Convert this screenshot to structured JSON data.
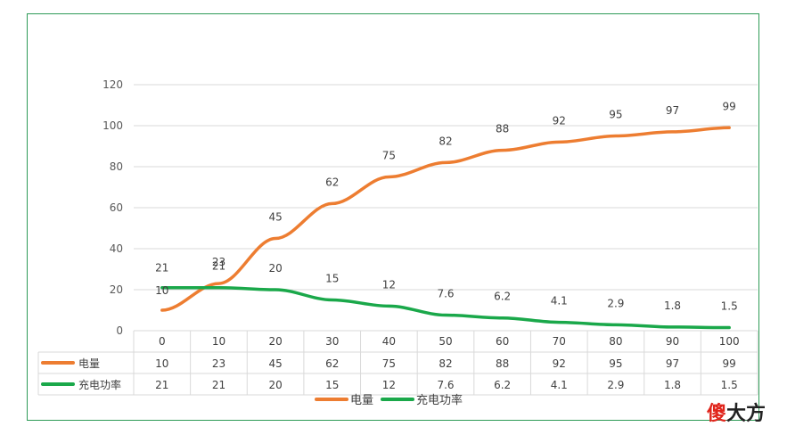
{
  "chart_data": {
    "type": "line",
    "categories": [
      "0",
      "10",
      "20",
      "30",
      "40",
      "50",
      "60",
      "70",
      "80",
      "90",
      "100"
    ],
    "series": [
      {
        "name": "电量",
        "color": "#ed7d31",
        "values": [
          10,
          23,
          45,
          62,
          75,
          82,
          88,
          92,
          95,
          97,
          99
        ],
        "labels": [
          "10",
          "23",
          "45",
          "62",
          "75",
          "82",
          "88",
          "92",
          "95",
          "97",
          "99"
        ]
      },
      {
        "name": "充电功率",
        "color": "#1aa84a",
        "values": [
          21,
          21,
          20,
          15,
          12,
          7.6,
          6.2,
          4.1,
          2.9,
          1.8,
          1.5
        ],
        "labels": [
          "21",
          "21",
          "20",
          "15",
          "12",
          "7.6",
          "6.2",
          "4.1",
          "2.9",
          "1.8",
          "1.5"
        ]
      }
    ],
    "y_ticks": [
      "0",
      "20",
      "40",
      "60",
      "80",
      "100",
      "120"
    ],
    "ylim": [
      0,
      120
    ],
    "grid": true,
    "data_table": true,
    "legend_position": "bottom"
  },
  "watermark": {
    "red": "傻",
    "black": "大方"
  }
}
